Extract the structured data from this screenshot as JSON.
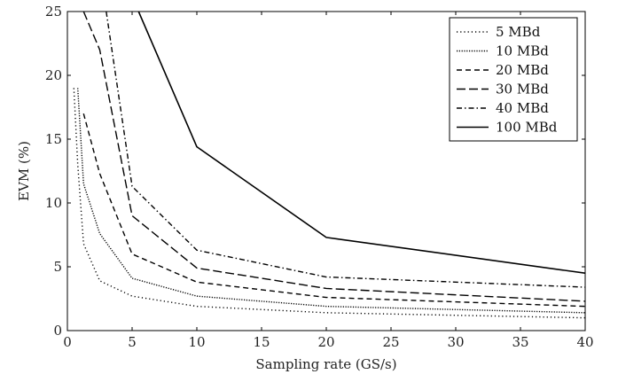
{
  "chart_data": {
    "type": "line",
    "xlabel": "Sampling rate (GS/s)",
    "ylabel": "EVM (%)",
    "xlim": [
      0,
      40
    ],
    "ylim": [
      0,
      25
    ],
    "xticks": [
      0,
      5,
      10,
      15,
      20,
      25,
      30,
      35,
      40
    ],
    "yticks": [
      0,
      5,
      10,
      15,
      20,
      25
    ],
    "grid": false,
    "legend_position": "top-right",
    "series": [
      {
        "name": "5 MBd",
        "dash": "dotted",
        "x": [
          0.5,
          0.8,
          1.25,
          2.5,
          5,
          10,
          20,
          40
        ],
        "y": [
          19.0,
          13.0,
          6.8,
          3.9,
          2.7,
          1.9,
          1.4,
          1.0
        ]
      },
      {
        "name": "10 MBd",
        "dash": "densely-dotted",
        "x": [
          0.8,
          1.25,
          2.5,
          5,
          10,
          20,
          40
        ],
        "y": [
          19.0,
          11.5,
          7.6,
          4.1,
          2.7,
          1.9,
          1.4
        ]
      },
      {
        "name": "20 MBd",
        "dash": "dashed",
        "x": [
          1.25,
          2.5,
          5,
          10,
          20,
          40
        ],
        "y": [
          17.0,
          12.3,
          6.0,
          3.8,
          2.6,
          1.9
        ]
      },
      {
        "name": "30 MBd",
        "dash": "long-dashed",
        "x": [
          1.25,
          2.5,
          5,
          10,
          20,
          40
        ],
        "y": [
          25.0,
          22.0,
          9.0,
          4.9,
          3.3,
          2.3
        ]
      },
      {
        "name": "40 MBd",
        "dash": "dash-dot",
        "x": [
          3.0,
          5,
          10,
          20,
          40
        ],
        "y": [
          25.0,
          11.3,
          6.3,
          4.2,
          3.4
        ]
      },
      {
        "name": "100 MBd",
        "dash": "solid",
        "x": [
          5.5,
          10,
          20,
          40
        ],
        "y": [
          25.0,
          14.4,
          7.3,
          4.5
        ]
      }
    ]
  }
}
